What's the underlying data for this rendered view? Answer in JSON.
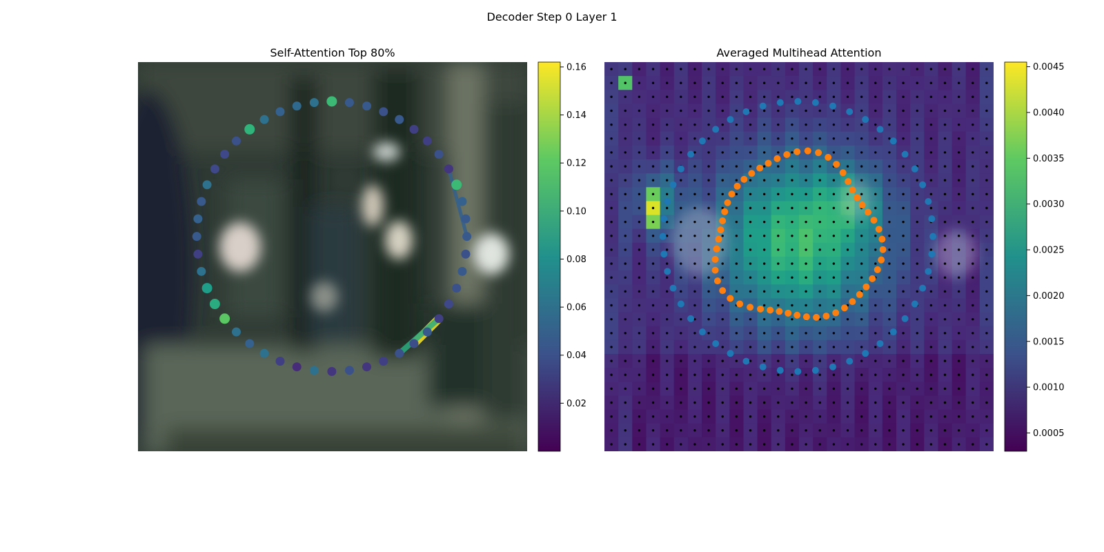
{
  "figure": {
    "suptitle": "Decoder Step 0 Layer 1"
  },
  "chart_data": [
    {
      "type": "scatter",
      "title": "Self-Attention Top 80%",
      "xlabel": "",
      "ylabel": "",
      "axes_visible": false,
      "background": "blurred video frame",
      "colormap": "viridis",
      "colorbar": {
        "range": [
          0.0,
          0.162
        ],
        "ticks": [
          "0.02",
          "0.04",
          "0.06",
          "0.08",
          "0.10",
          "0.12",
          "0.14",
          "0.16"
        ]
      },
      "points": {
        "description": "48 query points on a circle (image space 0..1), colored by attention weight",
        "count": 48,
        "values": [
          0.025,
          0.04,
          0.025,
          0.03,
          0.04,
          0.038,
          0.045,
          0.03,
          0.035,
          0.04,
          0.045,
          0.04,
          0.045,
          0.045,
          0.05,
          0.11,
          0.025,
          0.04,
          0.03,
          0.03,
          0.045,
          0.04,
          0.045,
          0.045,
          0.11,
          0.06,
          0.055,
          0.05,
          0.06,
          0.105,
          0.04,
          0.035,
          0.035,
          0.06,
          0.045,
          0.05,
          0.045,
          0.03,
          0.06,
          0.09,
          0.1,
          0.12,
          0.06,
          0.05,
          0.06,
          0.03,
          0.02,
          0.06
        ]
      },
      "edges": [
        {
          "from": 7,
          "to": 5,
          "weight": 0.165
        },
        {
          "from": 7,
          "to": 4,
          "weight": 0.1
        },
        {
          "from": 16,
          "to": 12,
          "weight": 0.05
        }
      ]
    },
    {
      "type": "heatmap",
      "title": "Averaged Multihead Attention",
      "xlabel": "",
      "ylabel": "",
      "axes_visible": false,
      "grid_size": [
        28,
        28
      ],
      "colormap": "viridis",
      "colorbar": {
        "range": [
          0.0003,
          0.00455
        ],
        "ticks": [
          "0.0005",
          "0.0010",
          "0.0015",
          "0.0020",
          "0.0025",
          "0.0030",
          "0.0035",
          "0.0040",
          "0.0045"
        ]
      },
      "overlays": [
        {
          "name": "grid points",
          "marker": "dot",
          "color": "#000000",
          "count": 784
        },
        {
          "name": "outer ring",
          "marker": "circle",
          "color": "#1f77b4",
          "count": 48
        },
        {
          "name": "inner contour",
          "marker": "circle",
          "color": "#ff7f0e",
          "count": 52
        }
      ]
    }
  ]
}
